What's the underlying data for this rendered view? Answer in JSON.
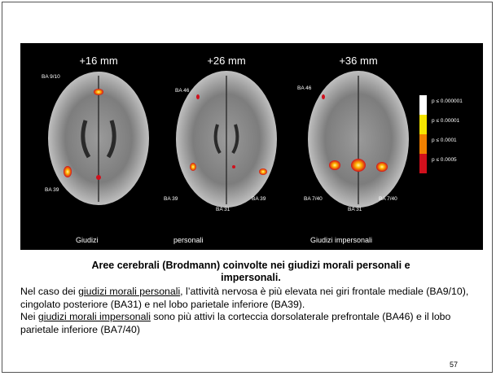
{
  "slide": {
    "figure": {
      "slice_labels": [
        "+16 mm",
        "+26 mm",
        "+36 mm"
      ],
      "region_labels": [
        "BA 9/10",
        "BA 39",
        "BA 46",
        "BA 39",
        "BA 39",
        "BA 31",
        "BA 46",
        "BA 7/40",
        "BA 31",
        "BA 7/40"
      ],
      "legend": [
        "p ≤ 0.000001",
        "p ≤ 0.00001",
        "p ≤ 0.0001",
        "p ≤ 0.0005"
      ],
      "captions": [
        "Giudizi",
        "personali",
        "Giudizi impersonali"
      ]
    },
    "caption": "Aree cerebrali (Brodmann) coinvolte nei giudizi morali personali e impersonali.",
    "paragraphs": [
      {
        "before": "Nel caso dei ",
        "underlined": "giudizi morali personali",
        "after": ", l’attività nervosa è più elevata nei giri frontale mediale (BA9/10), cingolato posteriore (BA31) e nel lobo parietale inferiore (BA39)."
      },
      {
        "before": "Nei ",
        "underlined": "giudizi morali impersonali",
        "after": " sono più attivi la corteccia dorsolaterale prefrontale (BA46) e il lobo parietale inferiore (BA7/40)"
      }
    ],
    "page_number": "57"
  }
}
